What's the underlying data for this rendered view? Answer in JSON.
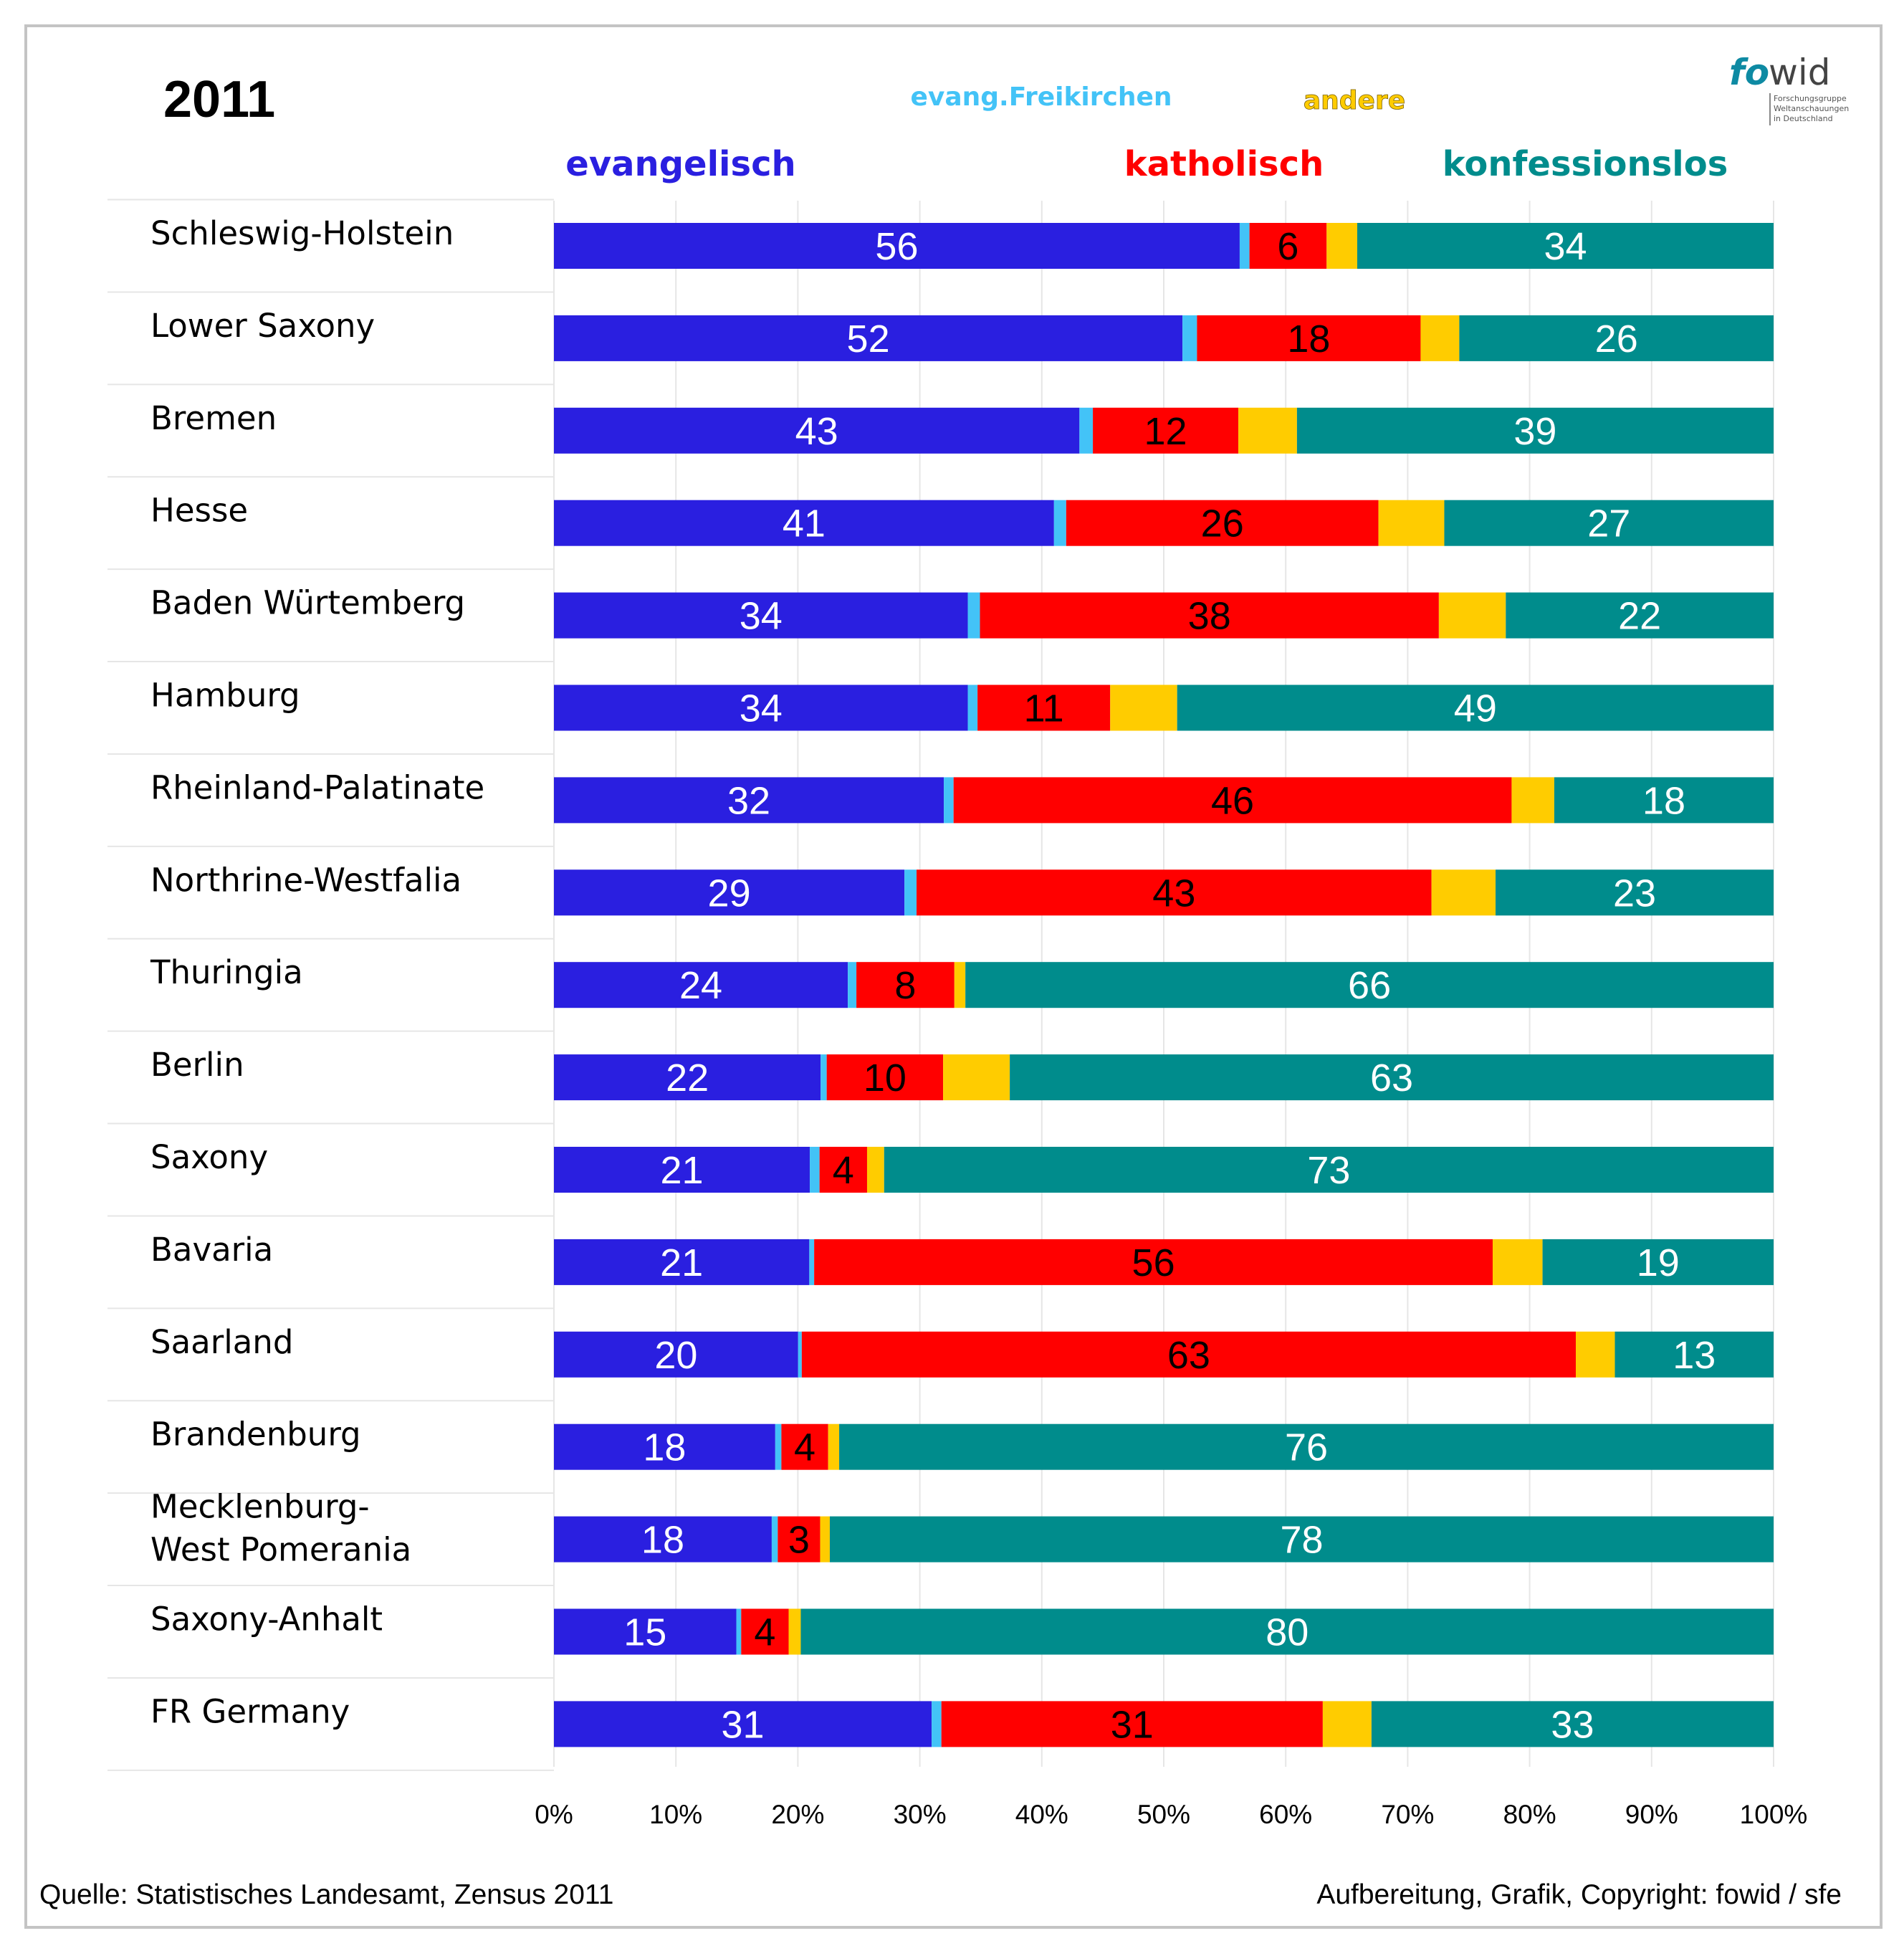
{
  "chart_data": {
    "type": "bar",
    "orientation": "horizontal",
    "stacked": true,
    "title": "2011",
    "categories": [
      "Schleswig-Holstein",
      "Lower Saxony",
      "Bremen",
      "Hesse",
      "Baden Würtemberg",
      "Hamburg",
      "Rheinland-Palatinate",
      "Northrine-Westfalia",
      "Thuringia",
      "Berlin",
      "Saxony",
      "Bavaria",
      "Saarland",
      "Brandenburg",
      "Mecklenburg-|West Pomerania",
      "Saxony-Anhalt",
      "FR Germany"
    ],
    "series": [
      {
        "name": "evangelisch",
        "color": "#2a1fe0",
        "label_color": "#ffffff",
        "values": [
          56,
          52,
          43,
          41,
          34,
          34,
          32,
          29,
          24,
          22,
          21,
          21,
          20,
          18,
          18,
          15,
          31
        ],
        "labels": [
          "56",
          "52",
          "43",
          "41",
          "34",
          "34",
          "32",
          "29",
          "24",
          "22",
          "21",
          "21",
          "20",
          "18",
          "18",
          "15",
          "31"
        ]
      },
      {
        "name": "evang.Freikirchen",
        "color": "#43c3f7",
        "label_color": "",
        "values": [
          0.8,
          1.2,
          1.1,
          1.0,
          1.0,
          0.8,
          0.8,
          1.0,
          0.7,
          0.5,
          0.8,
          0.4,
          0.3,
          0.5,
          0.5,
          0.4,
          0.8
        ],
        "labels": []
      },
      {
        "name": "katholisch",
        "color": "#ff0000",
        "label_color": "#000000",
        "values": [
          6.3,
          18.5,
          11.9,
          25.6,
          37.7,
          10.9,
          45.8,
          42.6,
          8.0,
          9.6,
          3.9,
          55.8,
          63.4,
          3.8,
          3.5,
          3.9,
          31.3
        ],
        "labels": [
          "6",
          "18",
          "12",
          "26",
          "38",
          "11",
          "46",
          "43",
          "8",
          "10",
          "4",
          "56",
          "63",
          "4",
          "3",
          "4",
          "31"
        ]
      },
      {
        "name": "andere",
        "color": "#ffcc00",
        "label_color": "",
        "values": [
          2.5,
          3.2,
          4.8,
          5.4,
          5.5,
          5.5,
          3.5,
          5.3,
          0.9,
          5.5,
          1.4,
          4.1,
          3.2,
          0.9,
          0.8,
          1.0,
          4.0
        ],
        "labels": []
      },
      {
        "name": "konfessionslos",
        "color": "#008c8c",
        "label_color": "#ffffff",
        "values": [
          34,
          26,
          39,
          27,
          22,
          49,
          18,
          23,
          66,
          63,
          73,
          19,
          13,
          76,
          78,
          80,
          33
        ],
        "labels": [
          "34",
          "26",
          "39",
          "27",
          "22",
          "49",
          "18",
          "23",
          "66",
          "63",
          "73",
          "19",
          "13",
          "76",
          "78",
          "80",
          "33"
        ]
      }
    ],
    "x_ticks": [
      "0%",
      "10%",
      "20%",
      "30%",
      "40%",
      "50%",
      "60%",
      "70%",
      "80%",
      "90%",
      "100%"
    ],
    "xlim": [
      0,
      100
    ],
    "grid": true,
    "legend": {
      "evangelisch": {
        "text": "evangelisch",
        "color": "#2a1fe0"
      },
      "freikirchen": {
        "text": "evang.Freikirchen",
        "color": "#43c3f7"
      },
      "katholisch": {
        "text": "katholisch",
        "color": "#ff0000"
      },
      "andere": {
        "text": "andere",
        "color": "#ffcc00"
      },
      "konfessionslos": {
        "text": "konfessionslos",
        "color": "#008c8c"
      }
    }
  },
  "logo": {
    "fo": "fo",
    "wid": "wid",
    "sub_lines": [
      "Forschungsgruppe",
      "Weltanschauungen",
      "in Deutschland"
    ]
  },
  "footer": {
    "source": "Quelle: Statistisches Landesamt, Zensus 2011",
    "credit": "Aufbereitung, Grafik, Copyright: fowid / sfe"
  }
}
